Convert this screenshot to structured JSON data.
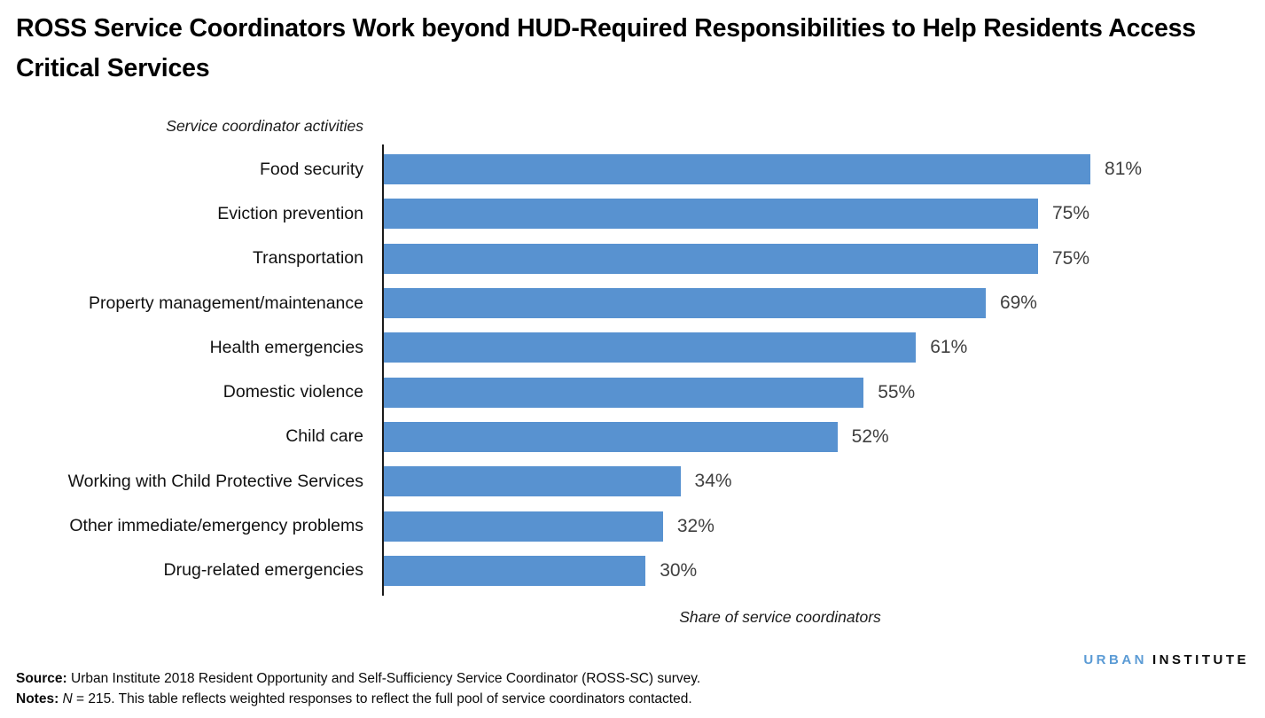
{
  "title": "ROSS Service Coordinators Work beyond HUD-Required Responsibilities to Help Residents Access Critical Services",
  "chart_data": {
    "type": "bar",
    "orientation": "horizontal",
    "title": "ROSS Service Coordinators Work beyond HUD-Required Responsibilities to Help Residents Access Critical Services",
    "ylabel": "Service coordinator activities",
    "xlabel": "Share of service coordinators",
    "categories": [
      "Food security",
      "Eviction prevention",
      "Transportation",
      "Property management/maintenance",
      "Health emergencies",
      "Domestic violence",
      "Child care",
      "Working with Child Protective Services",
      "Other immediate/emergency problems",
      "Drug-related emergencies"
    ],
    "values": [
      81,
      75,
      75,
      69,
      61,
      55,
      52,
      34,
      32,
      30
    ],
    "value_labels": [
      "81%",
      "75%",
      "75%",
      "69%",
      "61%",
      "55%",
      "52%",
      "34%",
      "32%",
      "30%"
    ],
    "xlim": [
      0,
      100
    ],
    "grid": false,
    "legend": null,
    "bar_color": "#5892D0",
    "value_label_color": "#404040",
    "axis_line_color": "#1a1a1a"
  },
  "footer": {
    "source_label": "Source:",
    "source_text": " Urban Institute 2018 Resident Opportunity and Self-Sufficiency Service Coordinator (ROSS-SC) survey.",
    "notes_label": "Notes:",
    "notes_n": "N",
    "notes_text": " = 215. This table reflects weighted responses to reflect the full pool of service coordinators contacted."
  },
  "logo": {
    "urban": "URBAN",
    "institute": "INSTITUTE",
    "urban_color": "#5B9BD5"
  }
}
